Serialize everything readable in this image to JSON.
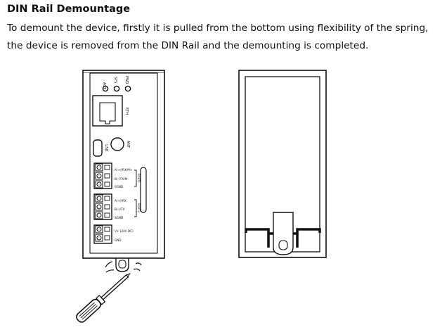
{
  "heading": "DIN Rail Demountage",
  "body_lines": [
    "To demount the device, firstly it is pulled from the bottom using flexibility of the spring,",
    "the device is removed from the DIN Rail and the demounting is completed."
  ],
  "device_labels": {
    "act": "ACT",
    "sys": "SYS",
    "pwr": "PWR",
    "eth": "ETH",
    "ant": "ANT",
    "usb": "USB",
    "port1": "PORT1",
    "port2": "PORT2",
    "a_rx_tx": "A(+)/RX/M+",
    "b_tx_m": "B(-)TX/M-",
    "sgnd1": "SGND",
    "a_rx": "A(+)/RX",
    "b_tx": "B(-)/TX",
    "sgnd2": "SGND",
    "vplus": "V+ (24V DC)",
    "gnd": "GND"
  }
}
